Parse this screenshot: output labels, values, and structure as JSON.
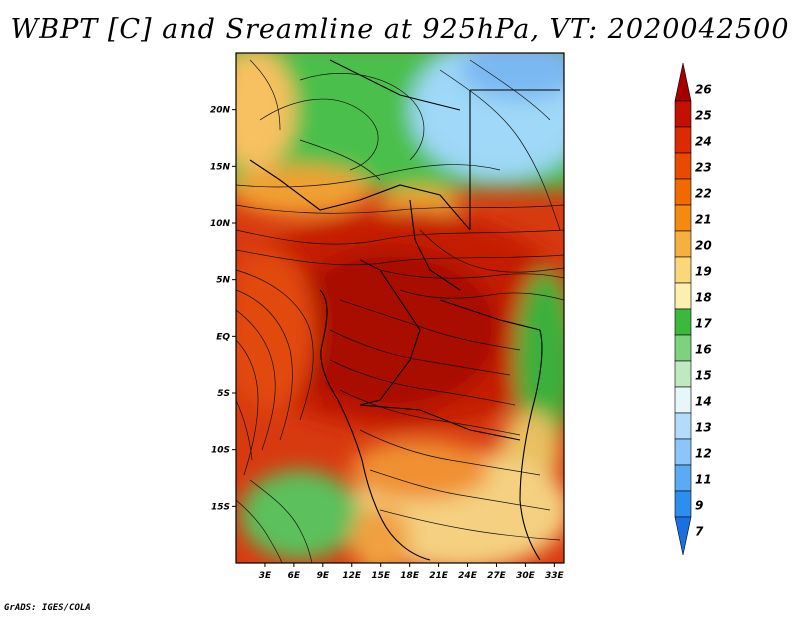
{
  "title": "WBPT [C] and Sreamline at 925hPa, VT: 2020042500",
  "credit": "GrADS: IGES/COLA",
  "map": {
    "lon_range": [
      0,
      34
    ],
    "lat_range": [
      -20,
      25
    ],
    "lon_ticks": [
      {
        "value": 3,
        "label": "3E"
      },
      {
        "value": 6,
        "label": "6E"
      },
      {
        "value": 9,
        "label": "9E"
      },
      {
        "value": 12,
        "label": "12E"
      },
      {
        "value": 15,
        "label": "15E"
      },
      {
        "value": 18,
        "label": "18E"
      },
      {
        "value": 21,
        "label": "21E"
      },
      {
        "value": 24,
        "label": "24E"
      },
      {
        "value": 27,
        "label": "27E"
      },
      {
        "value": 30,
        "label": "30E"
      },
      {
        "value": 33,
        "label": "33E"
      }
    ],
    "lat_ticks": [
      {
        "value": 20,
        "label": "20N"
      },
      {
        "value": 15,
        "label": "15N"
      },
      {
        "value": 10,
        "label": "10N"
      },
      {
        "value": 5,
        "label": "5N"
      },
      {
        "value": 0,
        "label": "EQ"
      },
      {
        "value": -5,
        "label": "5S"
      },
      {
        "value": -10,
        "label": "10S"
      },
      {
        "value": -15,
        "label": "15S"
      }
    ]
  },
  "colorbar": {
    "labels": [
      "26",
      "25",
      "24",
      "23",
      "22",
      "21",
      "20",
      "19",
      "18",
      "17",
      "16",
      "15",
      "14",
      "13",
      "12",
      "11",
      "9",
      "7"
    ],
    "colors": [
      "#a50000",
      "#c41000",
      "#de2a00",
      "#e84a00",
      "#f06a00",
      "#f58a10",
      "#f7b040",
      "#fad87a",
      "#fbf0b0",
      "#3cb83c",
      "#7ed27e",
      "#bfeabf",
      "#e6f6fa",
      "#b4dcfa",
      "#8cc6f8",
      "#5aaaf4",
      "#2e8eee",
      "#1a70e0"
    ]
  }
}
